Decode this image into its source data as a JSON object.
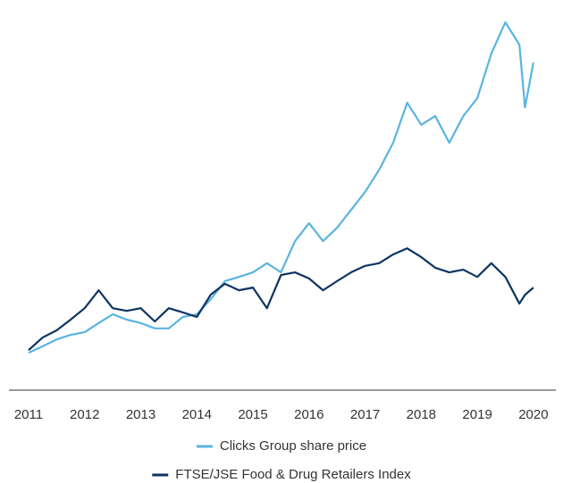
{
  "chart_data": {
    "type": "line",
    "xlim": [
      2010.65,
      2020.4
    ],
    "xticks": [
      2011,
      2012,
      2013,
      2014,
      2015,
      2016,
      2017,
      2018,
      2019,
      2020
    ],
    "ylim": [
      0,
      100
    ],
    "legend": "bottom",
    "x": [
      2011.0,
      2011.25,
      2011.5,
      2011.75,
      2012.0,
      2012.25,
      2012.5,
      2012.75,
      2013.0,
      2013.25,
      2013.5,
      2013.75,
      2014.0,
      2014.25,
      2014.5,
      2014.75,
      2015.0,
      2015.25,
      2015.5,
      2015.75,
      2016.0,
      2016.25,
      2016.5,
      2016.75,
      2017.0,
      2017.25,
      2017.5,
      2017.75,
      2018.0,
      2018.25,
      2018.5,
      2018.75,
      2019.0,
      2019.25,
      2019.5,
      2019.75,
      2019.85,
      2020.0
    ],
    "series": [
      {
        "name": "Clicks Group share price",
        "color": "#5ab4e0",
        "values": [
          9.8,
          11.5,
          13.3,
          14.5,
          15.2,
          17.6,
          19.9,
          18.5,
          17.6,
          16.2,
          16.2,
          19.2,
          19.9,
          23.9,
          28.6,
          29.7,
          30.9,
          33.3,
          30.9,
          39.1,
          43.8,
          39.1,
          42.6,
          47.3,
          52.0,
          57.8,
          64.9,
          75.4,
          69.6,
          71.9,
          64.9,
          71.9,
          76.6,
          88.3,
          96.5,
          90.6,
          74.2,
          85.9
        ]
      },
      {
        "name": "FTSE/JSE Food & Drug Retailers Index",
        "color": "#0d3461",
        "values": [
          10.5,
          13.8,
          15.7,
          18.5,
          21.5,
          26.2,
          21.5,
          20.8,
          21.5,
          18.0,
          21.5,
          20.4,
          19.2,
          25.1,
          27.9,
          26.2,
          26.9,
          21.5,
          30.2,
          30.9,
          29.3,
          26.2,
          28.6,
          30.9,
          32.6,
          33.3,
          35.6,
          37.2,
          34.9,
          32.1,
          30.9,
          31.6,
          29.7,
          33.3,
          29.7,
          22.7,
          25.0,
          26.9
        ]
      }
    ]
  }
}
